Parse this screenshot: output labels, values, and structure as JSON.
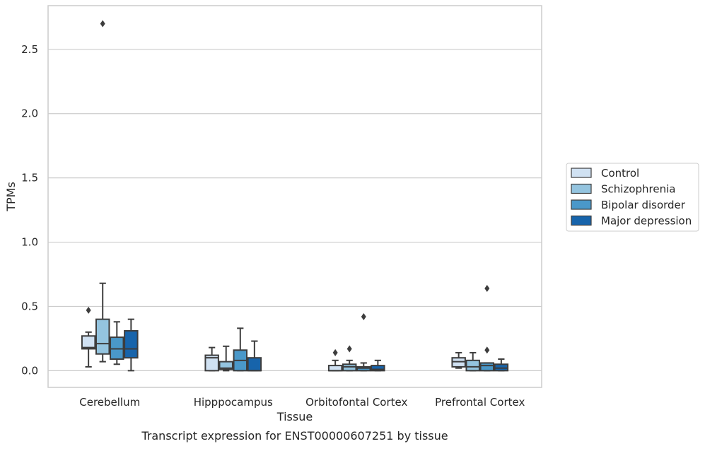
{
  "chart_data": {
    "type": "boxplot",
    "caption": "Transcript expression for ENST00000607251 by tissue",
    "xlabel": "Tissue",
    "ylabel": "TPMs",
    "ylim": [
      -0.13,
      2.84
    ],
    "yticks": [
      0.0,
      0.5,
      1.0,
      1.5,
      2.0,
      2.5
    ],
    "ytick_labels": [
      "0.0",
      "0.5",
      "1.0",
      "1.5",
      "2.0",
      "2.5"
    ],
    "grid": "horizontal",
    "legend_position": "right",
    "categories": [
      "Cerebellum",
      "Hipppocampus",
      "Orbitofontal Cortex",
      "Prefrontal Cortex"
    ],
    "series": [
      {
        "name": "Control",
        "color": "#d0e1f2",
        "boxes": [
          {
            "whislo": 0.03,
            "q1": 0.17,
            "med": 0.18,
            "q3": 0.27,
            "whishi": 0.3,
            "fliers": [
              0.47
            ]
          },
          {
            "whislo": 0.0,
            "q1": 0.0,
            "med": 0.1,
            "q3": 0.12,
            "whishi": 0.18,
            "fliers": []
          },
          {
            "whislo": 0.0,
            "q1": 0.0,
            "med": 0.0,
            "q3": 0.04,
            "whishi": 0.08,
            "fliers": [
              0.14
            ]
          },
          {
            "whislo": 0.02,
            "q1": 0.03,
            "med": 0.07,
            "q3": 0.1,
            "whishi": 0.14,
            "fliers": []
          }
        ]
      },
      {
        "name": "Schizophrenia",
        "color": "#94c4df",
        "boxes": [
          {
            "whislo": 0.07,
            "q1": 0.13,
            "med": 0.21,
            "q3": 0.4,
            "whishi": 0.68,
            "fliers": [
              2.7
            ]
          },
          {
            "whislo": 0.0,
            "q1": 0.01,
            "med": 0.02,
            "q3": 0.07,
            "whishi": 0.19,
            "fliers": []
          },
          {
            "whislo": 0.0,
            "q1": 0.0,
            "med": 0.03,
            "q3": 0.05,
            "whishi": 0.08,
            "fliers": [
              0.17
            ]
          },
          {
            "whislo": 0.0,
            "q1": 0.0,
            "med": 0.03,
            "q3": 0.08,
            "whishi": 0.14,
            "fliers": []
          }
        ]
      },
      {
        "name": "Bipolar disorder",
        "color": "#4a98c9",
        "boxes": [
          {
            "whislo": 0.05,
            "q1": 0.09,
            "med": 0.17,
            "q3": 0.26,
            "whishi": 0.38,
            "fliers": []
          },
          {
            "whislo": 0.0,
            "q1": 0.0,
            "med": 0.08,
            "q3": 0.16,
            "whishi": 0.33,
            "fliers": []
          },
          {
            "whislo": 0.0,
            "q1": 0.0,
            "med": 0.02,
            "q3": 0.03,
            "whishi": 0.06,
            "fliers": [
              0.42
            ]
          },
          {
            "whislo": 0.0,
            "q1": 0.0,
            "med": 0.04,
            "q3": 0.06,
            "whishi": 0.06,
            "fliers": [
              0.16,
              0.64
            ]
          }
        ]
      },
      {
        "name": "Major depression",
        "color": "#1764ab",
        "boxes": [
          {
            "whislo": 0.0,
            "q1": 0.1,
            "med": 0.17,
            "q3": 0.31,
            "whishi": 0.4,
            "fliers": []
          },
          {
            "whislo": 0.0,
            "q1": 0.0,
            "med": 0.0,
            "q3": 0.1,
            "whishi": 0.23,
            "fliers": []
          },
          {
            "whislo": 0.0,
            "q1": 0.0,
            "med": 0.01,
            "q3": 0.04,
            "whishi": 0.08,
            "fliers": []
          },
          {
            "whislo": 0.0,
            "q1": 0.0,
            "med": 0.02,
            "q3": 0.05,
            "whishi": 0.09,
            "fliers": []
          }
        ]
      }
    ]
  }
}
